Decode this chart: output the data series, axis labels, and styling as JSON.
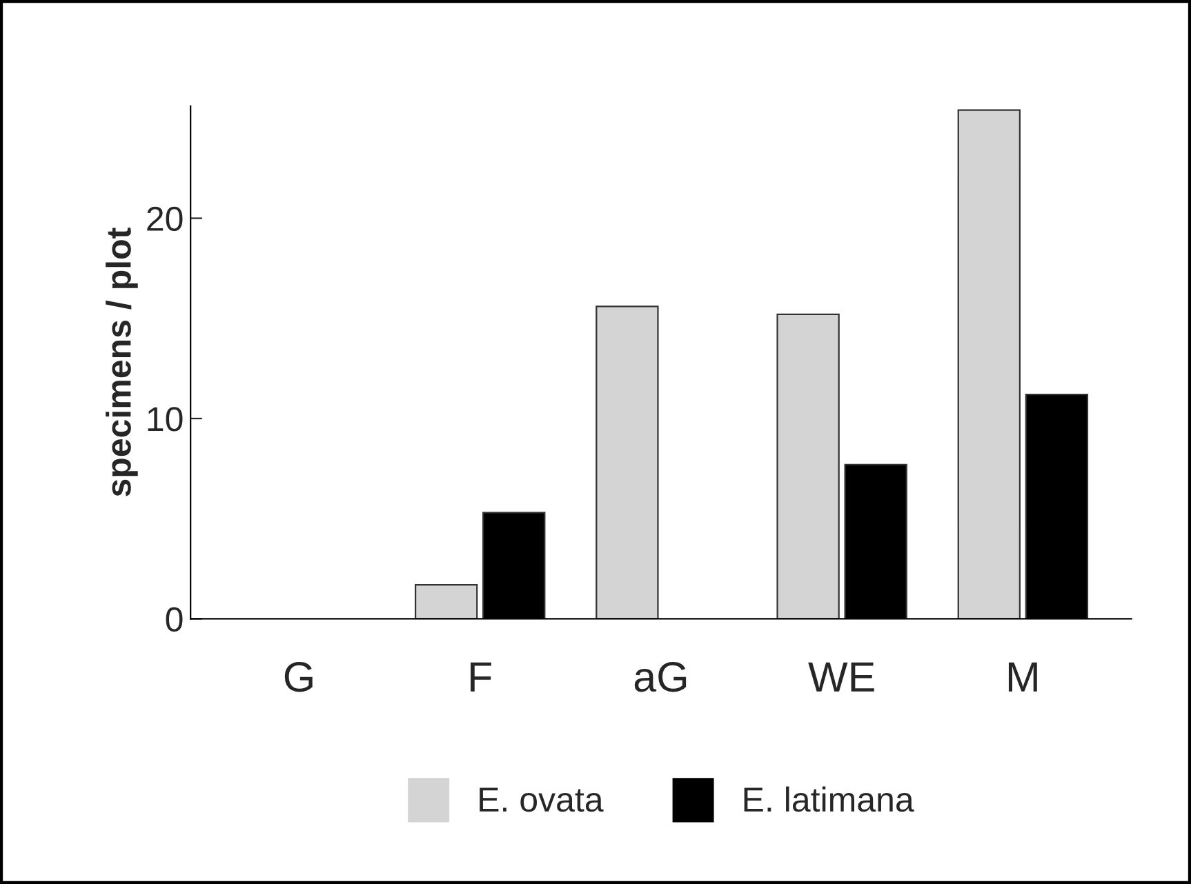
{
  "chart_data": {
    "type": "bar",
    "ylabel": "specimens / plot",
    "categories": [
      "G",
      "F",
      "aG",
      "WE",
      "M"
    ],
    "series": [
      {
        "name": "E. ovata",
        "color": "#d4d4d4",
        "values": [
          0,
          1.7,
          15.6,
          15.2,
          25.4
        ]
      },
      {
        "name": "E. latimana",
        "color": "#000000",
        "values": [
          0,
          5.3,
          null,
          7.7,
          11.2
        ]
      }
    ],
    "ylim": [
      0,
      25.6
    ],
    "yticks": [
      0,
      10,
      20
    ],
    "grid": false,
    "legend": "bottom"
  }
}
